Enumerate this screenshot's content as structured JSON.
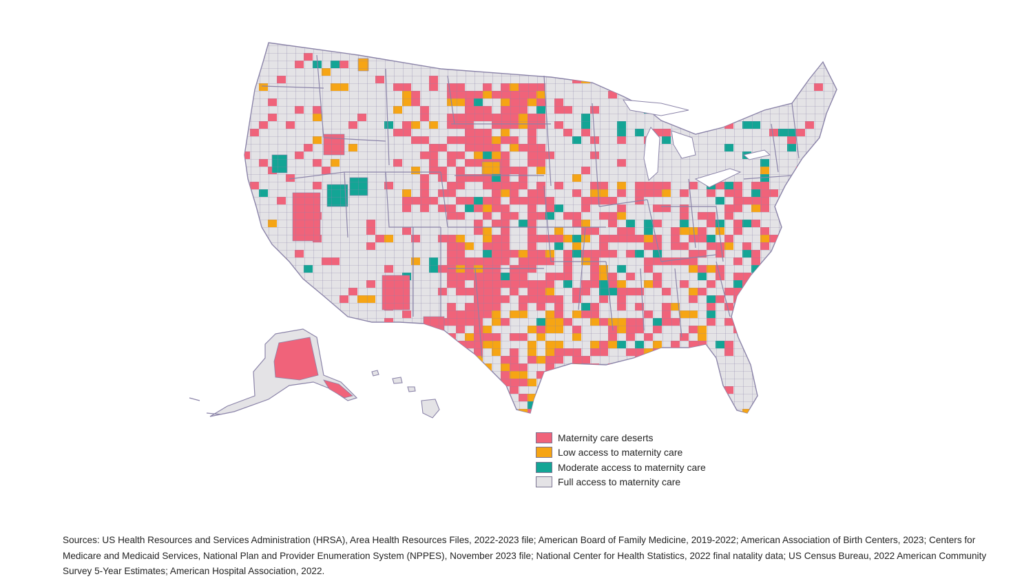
{
  "map": {
    "legend": [
      {
        "label": "Maternity care deserts",
        "color": "#F0637A"
      },
      {
        "label": "Low access to maternity care",
        "color": "#F6A514"
      },
      {
        "label": "Moderate access to maternity care",
        "color": "#13A595"
      },
      {
        "label": "Full access to maternity care",
        "color": "#E4E3E6"
      }
    ],
    "border_color": "#8A83A8"
  },
  "sources": "Sources: US Health Resources and Services Administration (HRSA), Area Health Resources Files, 2022-2023 file; American Board of Family Medicine, 2019-2022; American Association of Birth Centers, 2023; Centers for Medicare and Medicaid Services, National Plan and Provider Enumeration System (NPPES), November 2023 file; National Center for Health Statistics, 2022 final natality data; US Census Bureau, 2022 American Community Survey 5-Year Estimates; American Hospital Association, 2022."
}
